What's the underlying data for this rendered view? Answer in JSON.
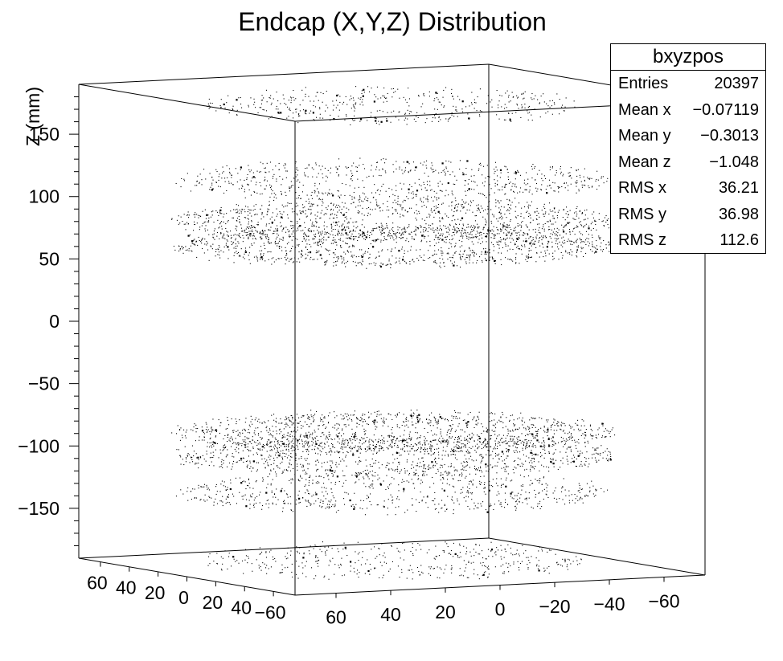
{
  "chart_data": {
    "type": "scatter",
    "dimension": "3d",
    "title": "Endcap (X,Y,Z) Distribution",
    "zlabel": "Z (mm)",
    "xlabel": "",
    "ylabel": "",
    "xlim": [
      -75,
      75
    ],
    "ylim": [
      -75,
      75
    ],
    "zlim": [
      -190,
      190
    ],
    "z_ticks": [
      "150",
      "100",
      "50",
      "0",
      "−50",
      "−100",
      "−150"
    ],
    "left_axis_ticks": [
      "−60",
      "40",
      "20",
      "0",
      "20",
      "40",
      "60"
    ],
    "right_axis_ticks": [
      "60",
      "40",
      "20",
      "0",
      "−20",
      "−40",
      "−60"
    ],
    "grid": false,
    "marker_color": "#000000",
    "point_layers": [
      {
        "z": 180,
        "r_inner": 5,
        "r_outer": 62,
        "density": 0.22
      },
      {
        "z": 120,
        "r_inner": 8,
        "r_outer": 70,
        "density": 0.35
      },
      {
        "z": 88,
        "r_inner": 10,
        "r_outer": 72,
        "density": 0.55
      },
      {
        "z": 68,
        "r_inner": 10,
        "r_outer": 72,
        "density": 0.6
      },
      {
        "z": -82,
        "r_inner": 10,
        "r_outer": 72,
        "density": 0.6
      },
      {
        "z": -100,
        "r_inner": 10,
        "r_outer": 72,
        "density": 0.55
      },
      {
        "z": -130,
        "r_inner": 8,
        "r_outer": 70,
        "density": 0.35
      },
      {
        "z": -185,
        "r_inner": 5,
        "r_outer": 62,
        "density": 0.22
      }
    ],
    "stats": {
      "name": "bxyzpos",
      "rows": [
        {
          "key": "Entries",
          "value": "20397"
        },
        {
          "key": "Mean x",
          "value": "−0.07119"
        },
        {
          "key": "Mean y",
          "value": "−0.3013"
        },
        {
          "key": "Mean z",
          "value": "−1.048"
        },
        {
          "key": "RMS x",
          "value": "36.21"
        },
        {
          "key": "RMS y",
          "value": "36.98"
        },
        {
          "key": "RMS z",
          "value": "112.6"
        }
      ]
    }
  }
}
